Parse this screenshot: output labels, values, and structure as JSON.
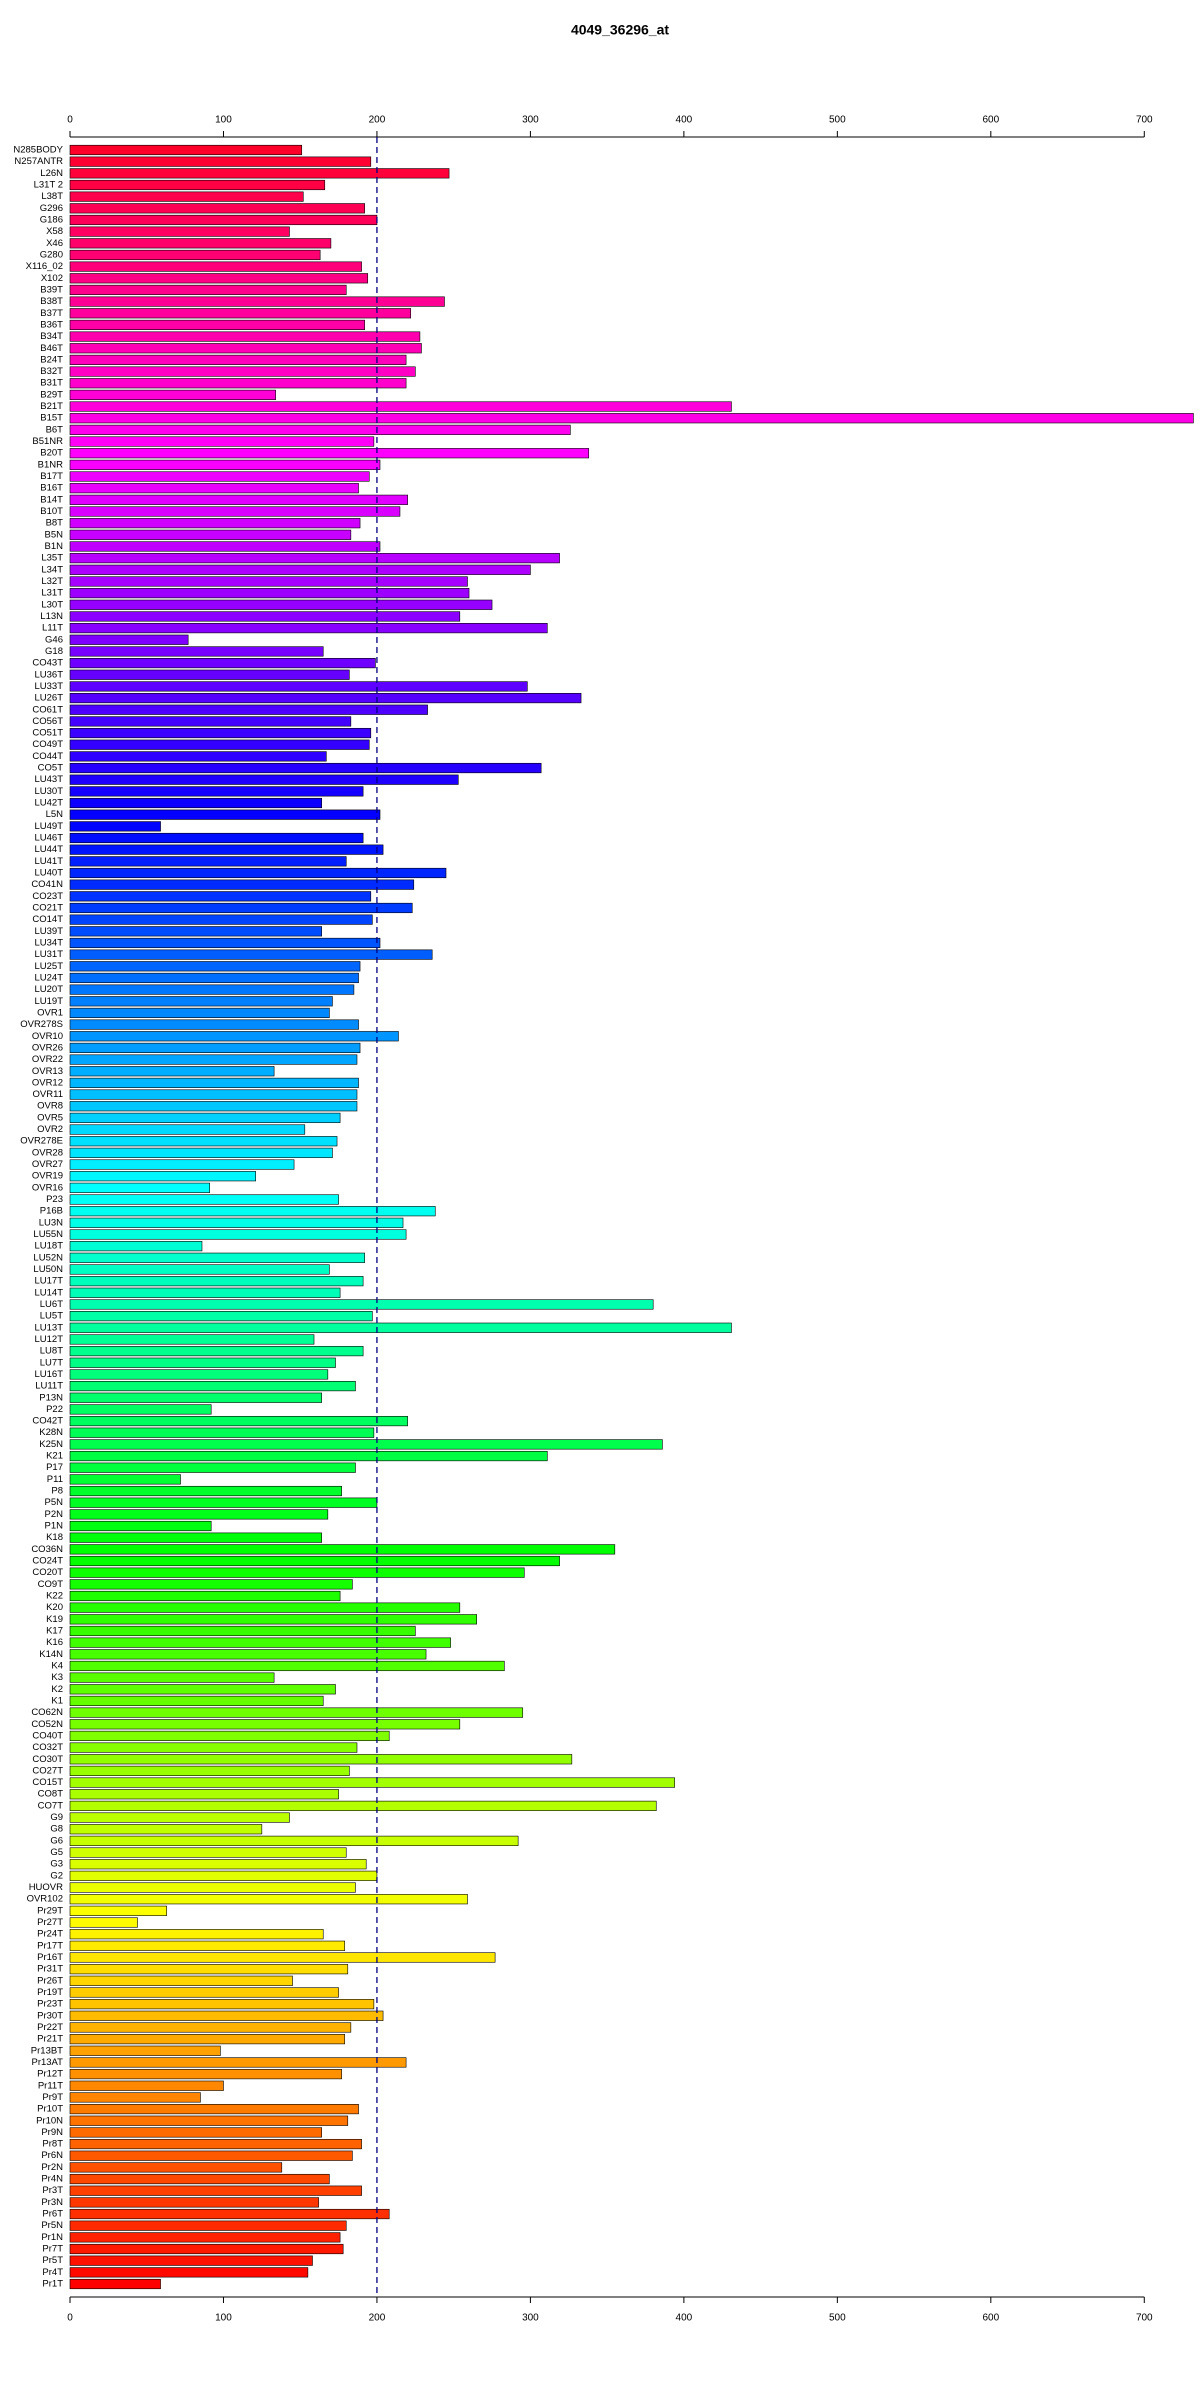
{
  "chart_data": {
    "type": "barh",
    "title": "4049_36296_at",
    "categories": [
      "N285BODY",
      "N257ANTR",
      "L26N",
      "L31T 2",
      "L38T",
      "G296",
      "G186",
      "X58",
      "X46",
      "G280",
      "X116_02",
      "X102",
      "B39T",
      "B38T",
      "B37T",
      "B36T",
      "B34T",
      "B46T",
      "B24T",
      "B32T",
      "B31T",
      "B29T",
      "B21T",
      "B15T",
      "B6T",
      "B51NR",
      "B20T",
      "B1NR",
      "B17T",
      "B16T",
      "B14T",
      "B10T",
      "B8T",
      "B5N",
      "B1N",
      "L35T",
      "L34T",
      "L32T",
      "L31T",
      "L30T",
      "L13N",
      "L11T",
      "G46",
      "G18",
      "CO43T",
      "LU36T",
      "LU33T",
      "LU26T",
      "CO61T",
      "CO56T",
      "CO51T",
      "CO49T",
      "CO44T",
      "CO5T",
      "LU43T",
      "LU30T",
      "LU42T",
      "L5N",
      "LU49T",
      "LU46T",
      "LU44T",
      "LU41T",
      "LU40T",
      "CO41N",
      "CO23T",
      "CO21T",
      "CO14T",
      "LU39T",
      "LU34T",
      "LU31T",
      "LU25T",
      "LU24T",
      "LU20T",
      "LU19T",
      "OVR1",
      "OVR278S",
      "OVR10",
      "OVR26",
      "OVR22",
      "OVR13",
      "OVR12",
      "OVR11",
      "OVR8",
      "OVR5",
      "OVR2",
      "OVR278E",
      "OVR28",
      "OVR27",
      "OVR19",
      "OVR16",
      "P23",
      "P16B",
      "LU3N",
      "LU55N",
      "LU18T",
      "LU52N",
      "LU50N",
      "LU17T",
      "LU14T",
      "LU6T",
      "LU5T",
      "LU13T",
      "LU12T",
      "LU8T",
      "LU7T",
      "LU16T",
      "LU11T",
      "P13N",
      "P22",
      "CO42T",
      "K28N",
      "K25N",
      "K21",
      "P17",
      "P11",
      "P8",
      "P5N",
      "P2N",
      "P1N",
      "K18",
      "CO36N",
      "CO24T",
      "CO20T",
      "CO9T",
      "K22",
      "K20",
      "K19",
      "K17",
      "K16",
      "K14N",
      "K4",
      "K3",
      "K2",
      "K1",
      "CO62N",
      "CO52N",
      "CO40T",
      "CO32T",
      "CO30T",
      "CO27T",
      "CO15T",
      "CO8T",
      "CO7T",
      "G9",
      "G8",
      "G6",
      "G5",
      "G3",
      "G2",
      "HUOVR",
      "OVR102",
      "Pr29T",
      "Pr27T",
      "Pr24T",
      "Pr17T",
      "Pr16T",
      "Pr31T",
      "Pr26T",
      "Pr19T",
      "Pr23T",
      "Pr30T",
      "Pr22T",
      "Pr21T",
      "Pr13BT",
      "Pr13AT",
      "Pr12T",
      "Pr11T",
      "Pr9T",
      "Pr10T",
      "Pr10N",
      "Pr9N",
      "Pr8T",
      "Pr6N",
      "Pr2N",
      "Pr4N",
      "Pr3T",
      "Pr3N",
      "Pr6T",
      "Pr5N",
      "Pr1N",
      "Pr7T",
      "Pr5T",
      "Pr4T",
      "Pr1T"
    ],
    "values": [
      151,
      196,
      247,
      166,
      152,
      192,
      200,
      143,
      170,
      163,
      190,
      194,
      180,
      244,
      222,
      192,
      228,
      229,
      219,
      225,
      219,
      134,
      431,
      732,
      326,
      198,
      338,
      202,
      195,
      188,
      220,
      215,
      189,
      183,
      202,
      319,
      300,
      259,
      260,
      275,
      254,
      311,
      77,
      165,
      199,
      182,
      298,
      333,
      233,
      183,
      196,
      195,
      167,
      307,
      253,
      191,
      164,
      202,
      59,
      191,
      204,
      180,
      245,
      224,
      196,
      223,
      197,
      164,
      202,
      236,
      189,
      188,
      185,
      171,
      169,
      188,
      214,
      189,
      187,
      133,
      188,
      187,
      187,
      176,
      153,
      174,
      171,
      146,
      121,
      91,
      175,
      238,
      217,
      219,
      86,
      192,
      169,
      191,
      176,
      380,
      197,
      431,
      159,
      191,
      173,
      168,
      186,
      164,
      92,
      220,
      198,
      386,
      311,
      186,
      72,
      177,
      200,
      168,
      92,
      164,
      355,
      319,
      296,
      184,
      176,
      254,
      265,
      225,
      248,
      232,
      283,
      133,
      173,
      165,
      295,
      254,
      208,
      187,
      327,
      182,
      394,
      175,
      382,
      143,
      125,
      292,
      180,
      193,
      200,
      186,
      259,
      63,
      44,
      165,
      179,
      277,
      181,
      145,
      175,
      198,
      204,
      183,
      179,
      98,
      219,
      177,
      100,
      85,
      188,
      181,
      164,
      190,
      184,
      138,
      169,
      190,
      162,
      208,
      180,
      176,
      178,
      158,
      155,
      59
    ],
    "colors": [
      "hsl(350,100%,50%)",
      "hsl(348,100%,50%)",
      "hsl(346,100%,50%)",
      "hsl(344,100%,50%)",
      "hsl(342,100%,50%)",
      "hsl(340,100%,50%)",
      "hsl(339,100%,50%)",
      "hsl(337,100%,50%)",
      "hsl(335,100%,50%)",
      "hsl(333,100%,50%)",
      "hsl(331,100%,50%)",
      "hsl(329,100%,50%)",
      "hsl(327,100%,50%)",
      "hsl(325,100%,50%)",
      "hsl(323,100%,50%)",
      "hsl(321,100%,50%)",
      "hsl(319,100%,50%)",
      "hsl(317,100%,50%)",
      "hsl(316,100%,50%)",
      "hsl(314,100%,50%)",
      "hsl(312,100%,50%)",
      "hsl(310,100%,50%)",
      "hsl(308,100%,50%)",
      "hsl(306,100%,50%)",
      "hsl(304,100%,50%)",
      "hsl(302,100%,50%)",
      "hsl(300,100%,50%)",
      "hsl(298,100%,50%)",
      "hsl(296,100%,50%)",
      "hsl(295,100%,50%)",
      "hsl(293,100%,50%)",
      "hsl(291,100%,50%)",
      "hsl(289,100%,50%)",
      "hsl(287,100%,50%)",
      "hsl(285,100%,50%)",
      "hsl(283,100%,50%)",
      "hsl(281,100%,50%)",
      "hsl(279,100%,50%)",
      "hsl(277,100%,50%)",
      "hsl(275,100%,50%)",
      "hsl(273,100%,50%)",
      "hsl(272,100%,50%)",
      "hsl(270,100%,50%)",
      "hsl(268,100%,50%)",
      "hsl(266,100%,50%)",
      "hsl(264,100%,50%)",
      "hsl(262,100%,50%)",
      "hsl(260,100%,50%)",
      "hsl(258,100%,50%)",
      "hsl(256,100%,50%)",
      "hsl(254,100%,50%)",
      "hsl(252,100%,50%)",
      "hsl(251,100%,50%)",
      "hsl(249,100%,50%)",
      "hsl(247,100%,50%)",
      "hsl(245,100%,50%)",
      "hsl(243,100%,50%)",
      "hsl(241,100%,50%)",
      "hsl(239,100%,50%)",
      "hsl(237,100%,50%)",
      "hsl(235,100%,50%)",
      "hsl(233,100%,50%)",
      "hsl(231,100%,50%)",
      "hsl(230,100%,50%)",
      "hsl(228,100%,50%)",
      "hsl(226,100%,50%)",
      "hsl(224,100%,50%)",
      "hsl(222,100%,50%)",
      "hsl(220,100%,50%)",
      "hsl(218,100%,50%)",
      "hsl(216,100%,50%)",
      "hsl(214,100%,50%)",
      "hsl(212,100%,50%)",
      "hsl(210,100%,50%)",
      "hsl(208,100%,50%)",
      "hsl(207,100%,50%)",
      "hsl(205,100%,50%)",
      "hsl(203,100%,50%)",
      "hsl(201,100%,50%)",
      "hsl(199,100%,50%)",
      "hsl(197,100%,50%)",
      "hsl(195,100%,50%)",
      "hsl(193,100%,50%)",
      "hsl(191,100%,50%)",
      "hsl(189,100%,50%)",
      "hsl(187,100%,50%)",
      "hsl(186,100%,50%)",
      "hsl(184,100%,50%)",
      "hsl(182,100%,50%)",
      "hsl(180,100%,50%)",
      "hsl(178,100%,50%)",
      "hsl(176,100%,50%)",
      "hsl(174,100%,50%)",
      "hsl(172,100%,50%)",
      "hsl(170,100%,50%)",
      "hsl(168,100%,50%)",
      "hsl(166,100%,50%)",
      "hsl(164,100%,50%)",
      "hsl(163,100%,50%)",
      "hsl(161,100%,50%)",
      "hsl(159,100%,50%)",
      "hsl(157,100%,50%)",
      "hsl(155,100%,50%)",
      "hsl(153,100%,50%)",
      "hsl(151,100%,50%)",
      "hsl(149,100%,50%)",
      "hsl(147,100%,50%)",
      "hsl(145,100%,50%)",
      "hsl(143,100%,50%)",
      "hsl(142,100%,50%)",
      "hsl(140,100%,50%)",
      "hsl(138,100%,50%)",
      "hsl(136,100%,50%)",
      "hsl(134,100%,50%)",
      "hsl(132,100%,50%)",
      "hsl(130,100%,50%)",
      "hsl(128,100%,50%)",
      "hsl(126,100%,50%)",
      "hsl(124,100%,50%)",
      "hsl(122,100%,50%)",
      "hsl(120,100%,50%)",
      "hsl(119,100%,50%)",
      "hsl(117,100%,50%)",
      "hsl(115,100%,50%)",
      "hsl(113,100%,50%)",
      "hsl(111,100%,50%)",
      "hsl(109,100%,50%)",
      "hsl(107,100%,50%)",
      "hsl(105,100%,50%)",
      "hsl(103,100%,50%)",
      "hsl(101,100%,50%)",
      "hsl(99,100%,50%)",
      "hsl(98,100%,50%)",
      "hsl(96,100%,50%)",
      "hsl(94,100%,50%)",
      "hsl(92,100%,50%)",
      "hsl(90,100%,50%)",
      "hsl(88,100%,50%)",
      "hsl(86,100%,50%)",
      "hsl(84,100%,50%)",
      "hsl(82,100%,50%)",
      "hsl(80,100%,50%)",
      "hsl(78,100%,50%)",
      "hsl(76,100%,50%)",
      "hsl(75,100%,50%)",
      "hsl(73,100%,50%)",
      "hsl(71,100%,50%)",
      "hsl(69,100%,50%)",
      "hsl(67,100%,50%)",
      "hsl(65,100%,50%)",
      "hsl(63,100%,50%)",
      "hsl(61,100%,50%)",
      "hsl(59,100%,50%)",
      "hsl(57,100%,50%)",
      "hsl(55,100%,50%)",
      "hsl(54,100%,50%)",
      "hsl(52,100%,50%)",
      "hsl(50,100%,50%)",
      "hsl(48,100%,50%)",
      "hsl(46,100%,50%)",
      "hsl(44,100%,50%)",
      "hsl(42,100%,50%)",
      "hsl(40,100%,50%)",
      "hsl(38,100%,50%)",
      "hsl(36,100%,50%)",
      "hsl(34,100%,50%)",
      "hsl(32,100%,50%)",
      "hsl(31,100%,50%)",
      "hsl(29,100%,50%)",
      "hsl(27,100%,50%)",
      "hsl(25,100%,50%)",
      "hsl(23,100%,50%)",
      "hsl(21,100%,50%)",
      "hsl(19,100%,50%)",
      "hsl(17,100%,50%)",
      "hsl(15,100%,50%)",
      "hsl(13,100%,50%)",
      "hsl(11,100%,50%)",
      "hsl(10,100%,50%)",
      "hsl(8,100%,50%)",
      "hsl(6,100%,50%)",
      "hsl(4,100%,50%)",
      "hsl(2,100%,50%)",
      "hsl(0,100%,50%)"
    ],
    "xlim": [
      0,
      735
    ],
    "xticks": [
      0,
      100,
      200,
      300,
      400,
      500,
      600,
      700
    ],
    "reference_line": 200,
    "reference_color": "#000080"
  }
}
